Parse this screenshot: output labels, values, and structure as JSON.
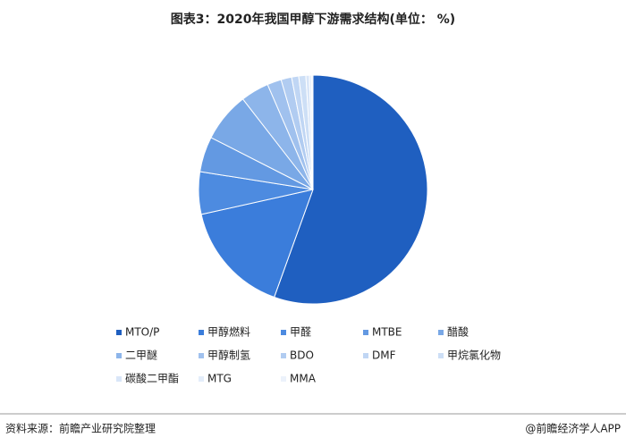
{
  "chart_data": {
    "type": "pie",
    "title": "图表3：2020年我国甲醇下游需求结构(单位： %)",
    "categories": [
      "MTO/P",
      "甲醇燃料",
      "甲醛",
      "MTBE",
      "醋酸",
      "二甲醚",
      "甲醇制氢",
      "BDO",
      "DMF",
      "甲烷氯化物",
      "碳酸二甲酯",
      "MTG",
      "MMA"
    ],
    "values": [
      55.5,
      16,
      6,
      5,
      7,
      4,
      2,
      1.5,
      1,
      1,
      0.5,
      0.3,
      0.2
    ],
    "colors": [
      "#1f5fc0",
      "#3b7ddb",
      "#4d8be0",
      "#6399e2",
      "#79a8e6",
      "#8db5ea",
      "#a0c1ee",
      "#b1ccf1",
      "#c0d6f4",
      "#cddff6",
      "#d9e6f8",
      "#e3edfa",
      "#ecf2fb"
    ]
  },
  "footer": {
    "source": "资料来源：前瞻产业研究院整理",
    "brand": "@前瞻经济学人APP"
  }
}
